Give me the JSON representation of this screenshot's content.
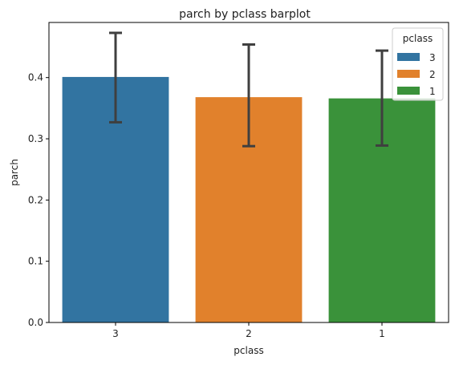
{
  "chart_data": {
    "type": "bar",
    "title": "parch by pclass barplot",
    "xlabel": "pclass",
    "ylabel": "parch",
    "categories": [
      "3",
      "2",
      "1"
    ],
    "values": [
      0.401,
      0.368,
      0.366
    ],
    "error_low": [
      0.327,
      0.288,
      0.289
    ],
    "error_high": [
      0.473,
      0.454,
      0.444
    ],
    "colors": [
      "#3274a1",
      "#e1812c",
      "#3a923a"
    ],
    "ylim": [
      0,
      0.49
    ],
    "yticks": [
      0.0,
      0.1,
      0.2,
      0.3,
      0.4
    ],
    "ytick_labels": [
      "0.0",
      "0.1",
      "0.2",
      "0.3",
      "0.4"
    ],
    "grid": false,
    "legend": {
      "title": "pclass",
      "position": "top-right",
      "entries": [
        "3",
        "2",
        "1"
      ]
    },
    "error_color": "#3f3f3f"
  }
}
